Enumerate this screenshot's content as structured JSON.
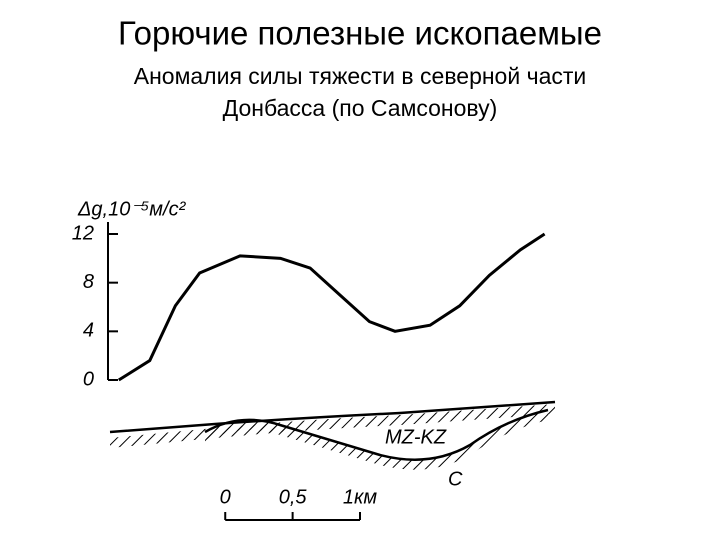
{
  "title": "Горючие полезные ископаемые",
  "subtitle": [
    "Аномалия силы тяжести в северной части",
    "Донбасса (по Самсонову)"
  ],
  "chart_data": {
    "type": "line",
    "y_label": "Δg,10⁻⁵м/с²",
    "x": [
      -0.79,
      -0.56,
      -0.37,
      -0.19,
      0.11,
      0.41,
      0.63,
      0.85,
      1.07,
      1.26,
      1.52,
      1.74,
      1.96,
      2.19,
      2.37
    ],
    "values": [
      0,
      1.6,
      6.1,
      8.8,
      10.2,
      10,
      9.2,
      7,
      4.8,
      4,
      4.5,
      6.1,
      8.6,
      10.7,
      12
    ],
    "color": "#000000",
    "xlim": [
      -0.87,
      2.41
    ],
    "xticks": [
      {
        "value": 0,
        "label": "0"
      },
      {
        "value": 0.5,
        "label": "0,5"
      },
      {
        "value": 1,
        "label": "1км"
      }
    ],
    "ylim": [
      0,
      12
    ],
    "yticks": [
      0,
      4,
      8,
      12
    ],
    "annotations": [
      "MZ-KZ",
      "C"
    ]
  }
}
